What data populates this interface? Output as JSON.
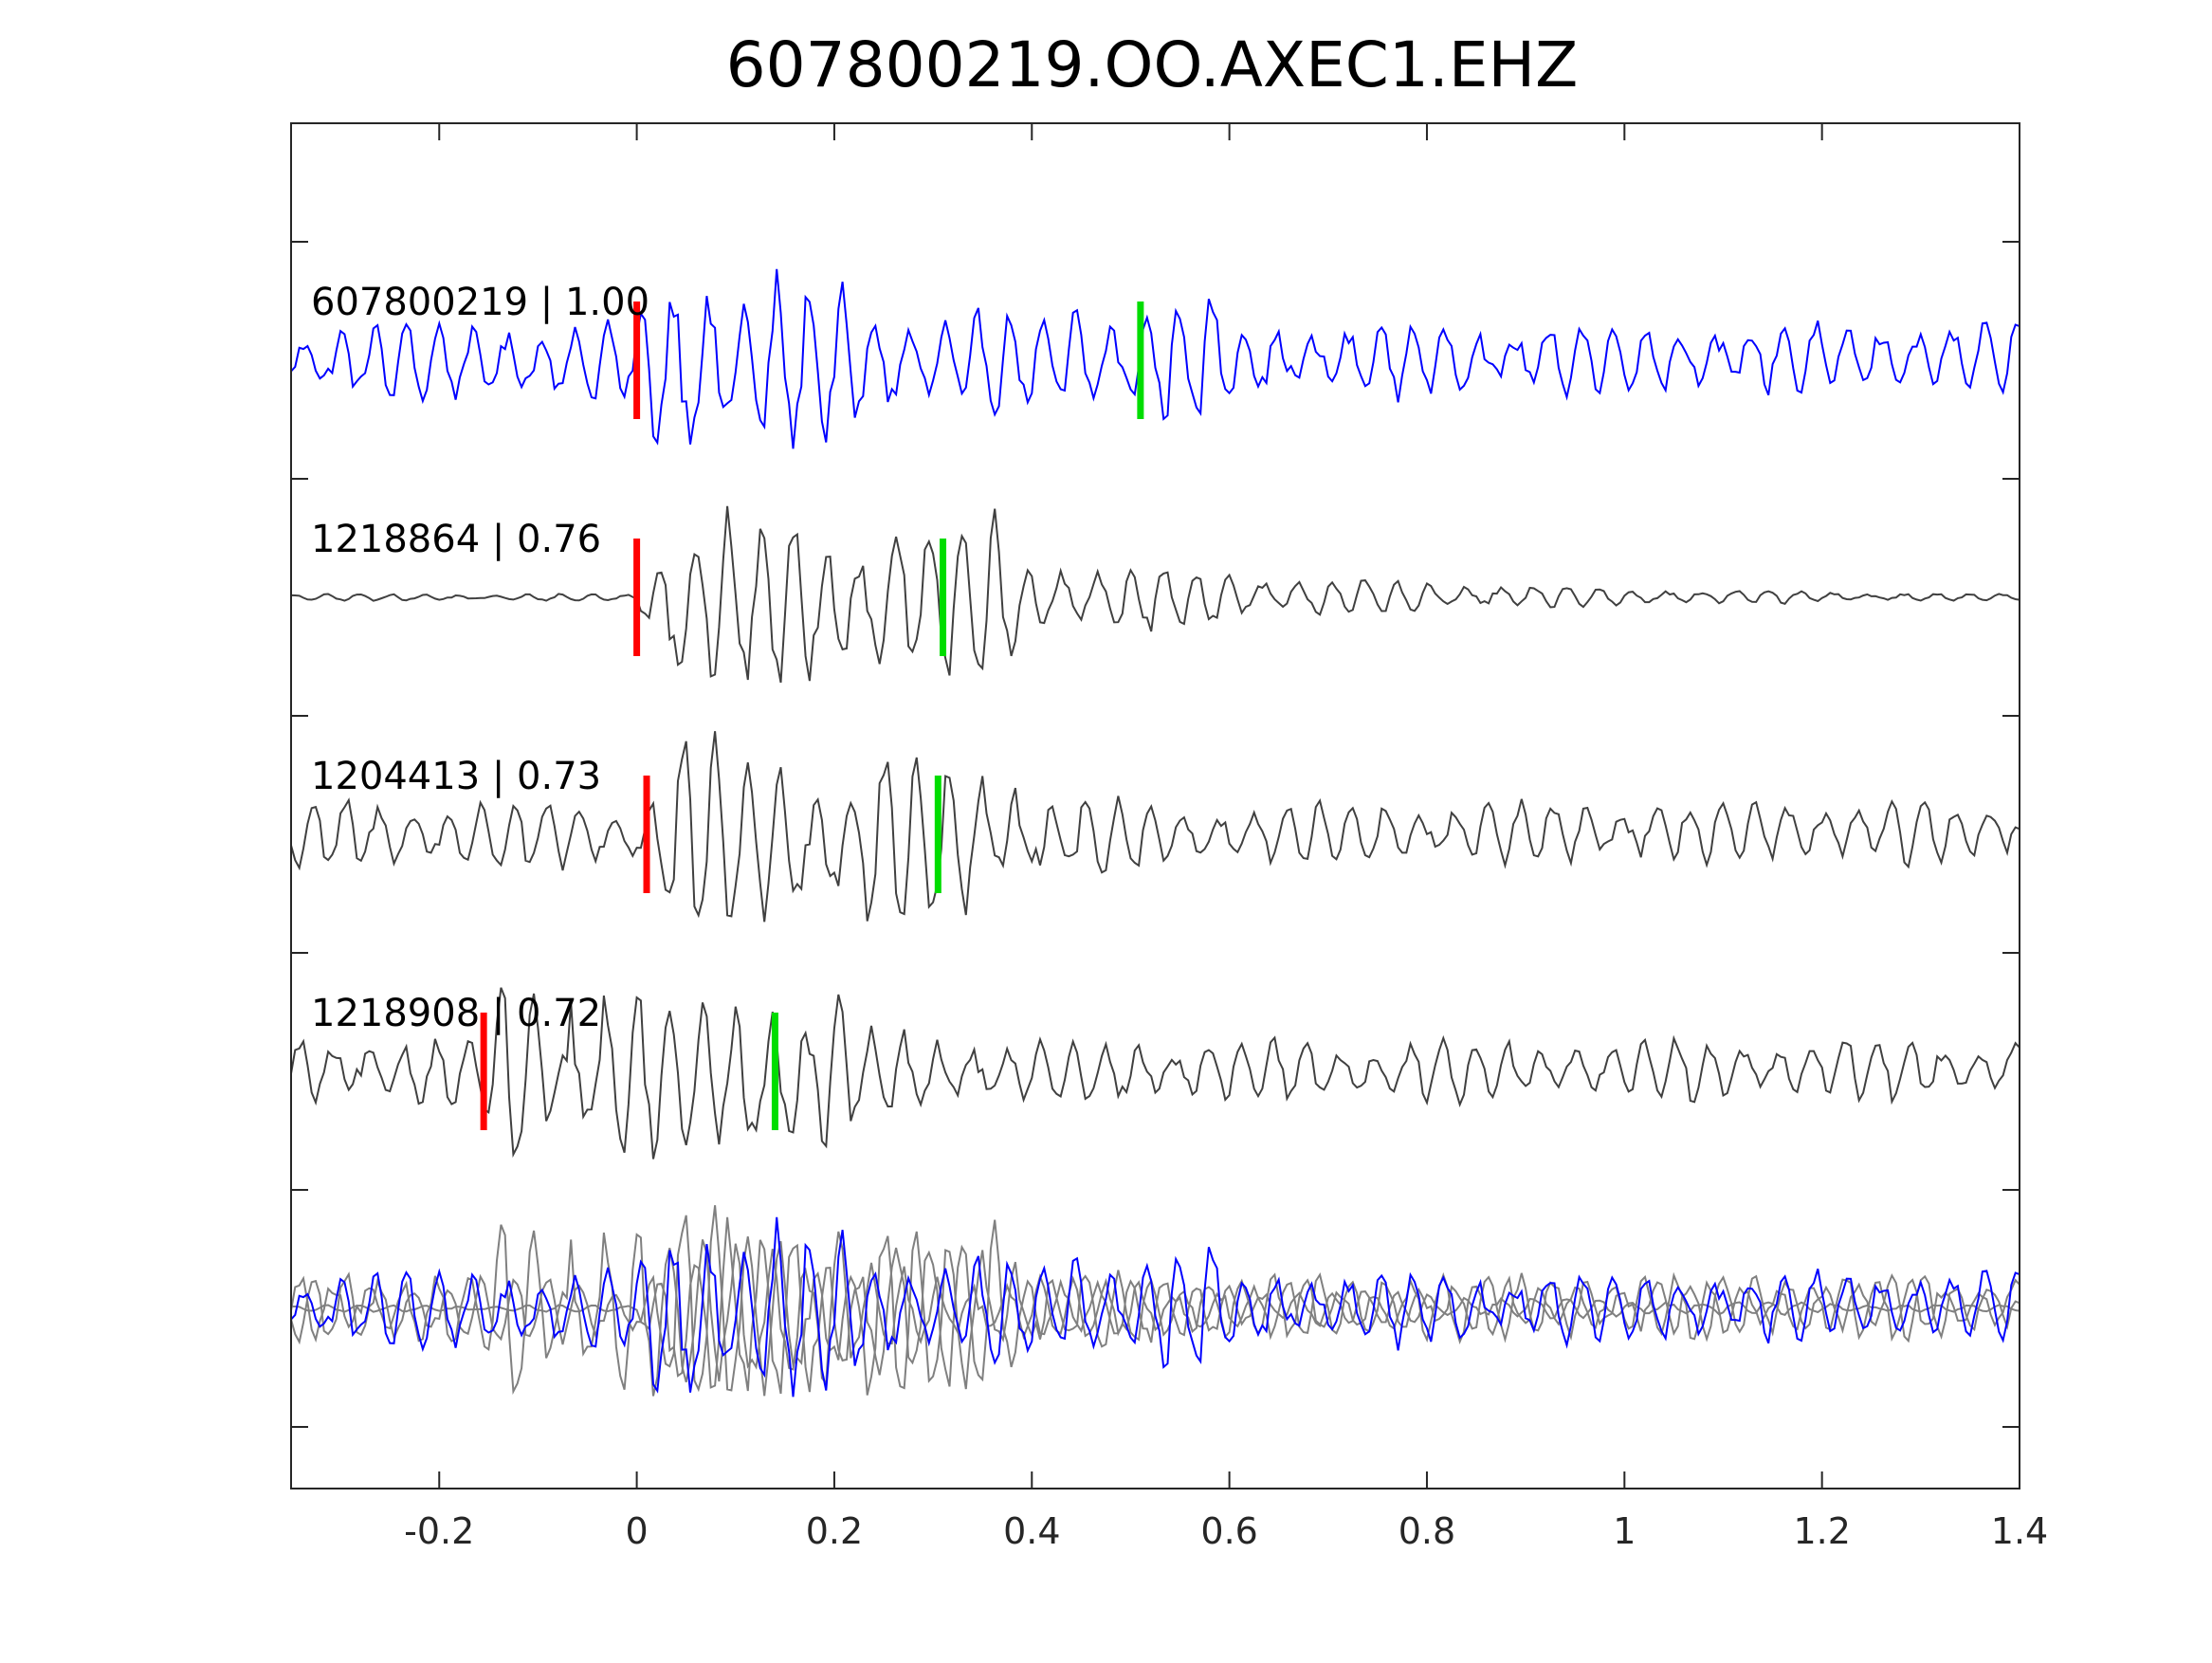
{
  "chart_data": {
    "type": "line",
    "title": "607800219.OO.AXEC1.EHZ",
    "xlabel": "",
    "ylabel": "",
    "xlim": [
      -0.35,
      1.4
    ],
    "xticks": [
      "-0.2",
      "0",
      "0.2",
      "0.4",
      "0.6",
      "0.8",
      "1",
      "1.2",
      "1.4"
    ],
    "xtick_values": [
      -0.2,
      0,
      0.2,
      0.4,
      0.6,
      0.8,
      1,
      1.2,
      1.4
    ],
    "ytick_count": 11,
    "grid": false,
    "colors": {
      "master": "#0000ff",
      "trace": "#404040",
      "overlay": "#808080",
      "p_pick": "#ff0000",
      "s_pick": "#00dd00"
    },
    "series": [
      {
        "name": "607800219 | 1.00",
        "label": "607800219 | 1.00",
        "color": "#0000ff",
        "p_pick": 0.0,
        "s_pick": 0.51,
        "noise": 0.35,
        "peak": 1.0
      },
      {
        "name": "1218864 | 0.76",
        "label": "1218864 | 0.76",
        "color": "#404040",
        "p_pick": 0.0,
        "s_pick": 0.31,
        "noise": 0.03,
        "peak": 1.0
      },
      {
        "name": "1204413 | 0.73",
        "label": "1204413 | 0.73",
        "color": "#404040",
        "p_pick": 0.01,
        "s_pick": 0.305,
        "noise": 0.3,
        "peak": 1.0
      },
      {
        "name": "1218908 | 0.72",
        "label": "1218908 | 0.72",
        "color": "#404040",
        "p_pick": -0.155,
        "s_pick": 0.14,
        "noise": 0.3,
        "peak": 1.0
      }
    ]
  }
}
